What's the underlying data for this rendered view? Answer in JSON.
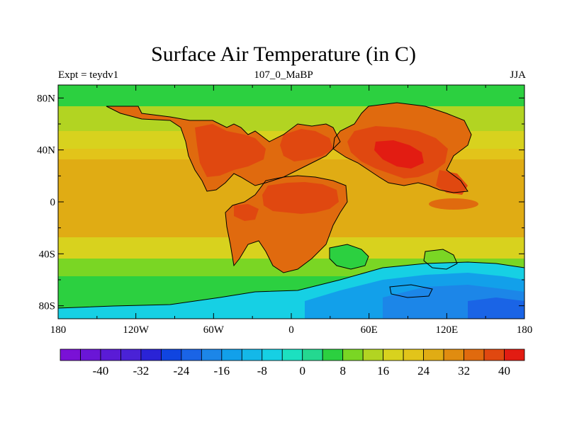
{
  "title": "Surface Air Temperature (in C)",
  "subtitle_left": "Expt = teydv1",
  "subtitle_center": "107_0_MaBP",
  "subtitle_right": "JJA",
  "lon_ticks": [
    "180",
    "120W",
    "60W",
    "0",
    "60E",
    "120E",
    "180"
  ],
  "lat_ticks": [
    "80N",
    "40N",
    "0",
    "40S",
    "80S"
  ],
  "colorbar": {
    "colors": [
      "#7a11d6",
      "#6a16d6",
      "#5a1bd6",
      "#4a22d6",
      "#2a23d6",
      "#1045e0",
      "#1a64e6",
      "#1c86e8",
      "#12a0ea",
      "#14b8e8",
      "#16d0e4",
      "#1ce0c0",
      "#24d890",
      "#2cd040",
      "#7ad624",
      "#b2d422",
      "#d8d21e",
      "#e2c41a",
      "#e0ac14",
      "#e08c10",
      "#e06a0e",
      "#e04810",
      "#e21c12"
    ],
    "labels": [
      {
        "text": "-40",
        "after_index": 1
      },
      {
        "text": "-32",
        "after_index": 3
      },
      {
        "text": "-24",
        "after_index": 5
      },
      {
        "text": "-16",
        "after_index": 7
      },
      {
        "text": "-8",
        "after_index": 9
      },
      {
        "text": "0",
        "after_index": 11
      },
      {
        "text": "8",
        "after_index": 13
      },
      {
        "text": "16",
        "after_index": 15
      },
      {
        "text": "24",
        "after_index": 17
      },
      {
        "text": "32",
        "after_index": 19
      },
      {
        "text": "40",
        "after_index": 21
      }
    ]
  },
  "map_colors": {
    "ocean_polar_n": "#2cd040",
    "ocean_sub_n": "#b2d422",
    "ocean_mid": "#d8d21e",
    "ocean_warm": "#e2c41a",
    "ocean_tropics": "#e0ac14",
    "ocean_south_warm": "#d8d21e",
    "ocean_south_mid": "#7ad624",
    "ocean_south_cool": "#2cd040",
    "land_hot": "#e04810",
    "land_veryhot": "#e21c12",
    "land_warm": "#e06a0e",
    "antarctic_1": "#16d0e4",
    "antarctic_2": "#12a0ea",
    "antarctic_3": "#1c86e8",
    "antarctic_4": "#1a64e6"
  }
}
